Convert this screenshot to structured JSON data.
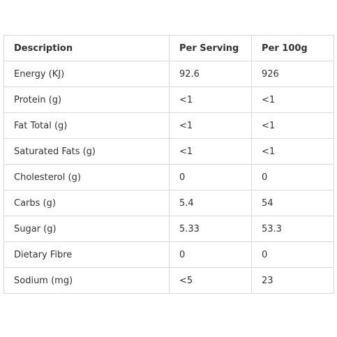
{
  "table": {
    "headers": [
      "Description",
      "Per Serving",
      "Per 100g"
    ],
    "rows": [
      [
        "Energy (KJ)",
        "92.6",
        "926"
      ],
      [
        "Protein (g)",
        "<1",
        "<1"
      ],
      [
        "Fat Total (g)",
        "<1",
        "<1"
      ],
      [
        "Saturated Fats (g)",
        "<1",
        "<1"
      ],
      [
        "Cholesterol (g)",
        "0",
        "0"
      ],
      [
        "Carbs (g)",
        "5.4",
        "54"
      ],
      [
        "Sugar (g)",
        "5.33",
        "53.3"
      ],
      [
        "Dietary Fibre",
        "0",
        "0"
      ],
      [
        "Sodium (mg)",
        "<5",
        "23"
      ]
    ]
  }
}
